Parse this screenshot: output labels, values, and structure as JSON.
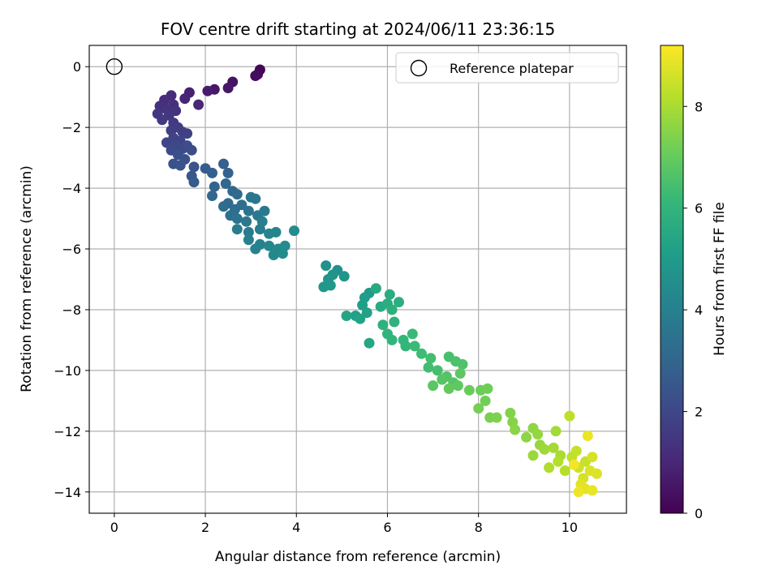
{
  "chart_data": {
    "type": "scatter",
    "title": "FOV centre drift starting at 2024/06/11 23:36:15",
    "xlabel": "Angular distance from reference (arcmin)",
    "ylabel": "Rotation from reference (arcmin)",
    "xlim": [
      -0.55,
      11.25
    ],
    "ylim": [
      -14.7,
      0.7
    ],
    "xticks": [
      0,
      2,
      4,
      6,
      8,
      10
    ],
    "yticks": [
      0,
      -2,
      -4,
      -6,
      -8,
      -10,
      -12,
      -14
    ],
    "grid": true,
    "legend": {
      "position": "top-right",
      "label": "Reference platepar"
    },
    "reference_point": {
      "x": 0,
      "y": 0
    },
    "colorbar": {
      "label": "Hours from first FF file",
      "min": 0,
      "max": 9.2,
      "ticks": [
        0,
        2,
        4,
        6,
        8
      ],
      "colormap": [
        "#440154",
        "#482878",
        "#3e4989",
        "#31688e",
        "#26828e",
        "#1f9e89",
        "#35b779",
        "#6ece58",
        "#b5de2b",
        "#fde725"
      ]
    },
    "series": [
      {
        "points": [
          [
            3.2,
            -0.1,
            0.1
          ],
          [
            3.15,
            -0.25,
            0.2
          ],
          [
            3.1,
            -0.3,
            0.3
          ],
          [
            2.6,
            -0.5,
            0.45
          ],
          [
            2.5,
            -0.7,
            0.55
          ],
          [
            2.2,
            -0.75,
            0.6
          ],
          [
            2.05,
            -0.8,
            0.7
          ],
          [
            1.65,
            -0.85,
            0.85
          ],
          [
            1.55,
            -1.05,
            0.95
          ],
          [
            1.85,
            -1.25,
            1.0
          ],
          [
            1.25,
            -0.95,
            1.15
          ],
          [
            1.1,
            -1.1,
            1.2
          ],
          [
            1.3,
            -1.25,
            1.25
          ],
          [
            1.0,
            -1.3,
            1.3
          ],
          [
            1.15,
            -1.4,
            1.35
          ],
          [
            1.35,
            -1.45,
            1.4
          ],
          [
            0.95,
            -1.55,
            1.45
          ],
          [
            1.2,
            -1.6,
            1.5
          ],
          [
            1.05,
            -1.75,
            1.55
          ],
          [
            1.3,
            -1.85,
            1.6
          ],
          [
            1.4,
            -2.0,
            1.65
          ],
          [
            1.25,
            -2.1,
            1.7
          ],
          [
            1.5,
            -2.15,
            1.75
          ],
          [
            1.6,
            -2.2,
            1.8
          ],
          [
            1.3,
            -2.35,
            1.85
          ],
          [
            1.45,
            -2.45,
            1.9
          ],
          [
            1.15,
            -2.5,
            1.95
          ],
          [
            1.35,
            -2.6,
            2.0
          ],
          [
            1.5,
            -2.7,
            2.05
          ],
          [
            1.25,
            -2.75,
            2.1
          ],
          [
            1.6,
            -2.6,
            2.15
          ],
          [
            1.7,
            -2.75,
            2.2
          ],
          [
            1.4,
            -2.9,
            2.25
          ],
          [
            1.55,
            -3.05,
            2.3
          ],
          [
            1.3,
            -3.2,
            2.35
          ],
          [
            1.45,
            -3.25,
            2.4
          ],
          [
            1.75,
            -3.3,
            2.45
          ],
          [
            1.7,
            -3.6,
            2.55
          ],
          [
            1.75,
            -3.8,
            2.6
          ],
          [
            2.0,
            -3.35,
            2.7
          ],
          [
            2.15,
            -3.5,
            2.8
          ],
          [
            2.4,
            -3.2,
            2.85
          ],
          [
            2.5,
            -3.5,
            2.9
          ],
          [
            2.2,
            -3.95,
            2.95
          ],
          [
            2.15,
            -4.25,
            3.0
          ],
          [
            2.45,
            -3.85,
            3.05
          ],
          [
            2.6,
            -4.1,
            3.1
          ],
          [
            2.7,
            -4.2,
            3.15
          ],
          [
            2.5,
            -4.5,
            3.2
          ],
          [
            2.4,
            -4.6,
            3.25
          ],
          [
            2.65,
            -4.7,
            3.3
          ],
          [
            2.8,
            -4.55,
            3.35
          ],
          [
            2.55,
            -4.9,
            3.4
          ],
          [
            2.7,
            -5.0,
            3.45
          ],
          [
            2.95,
            -4.75,
            3.5
          ],
          [
            3.0,
            -4.3,
            3.55
          ],
          [
            3.1,
            -4.35,
            3.6
          ],
          [
            2.9,
            -5.1,
            3.65
          ],
          [
            3.15,
            -4.9,
            3.7
          ],
          [
            3.3,
            -4.75,
            3.75
          ],
          [
            2.7,
            -5.35,
            3.8
          ],
          [
            2.95,
            -5.45,
            3.85
          ],
          [
            3.2,
            -5.35,
            3.9
          ],
          [
            3.25,
            -5.1,
            3.95
          ],
          [
            2.95,
            -5.7,
            4.0
          ],
          [
            3.2,
            -5.85,
            4.05
          ],
          [
            3.1,
            -6.0,
            4.1
          ],
          [
            3.4,
            -5.5,
            4.15
          ],
          [
            3.55,
            -5.45,
            4.2
          ],
          [
            3.4,
            -5.9,
            4.25
          ],
          [
            3.6,
            -6.0,
            4.3
          ],
          [
            3.5,
            -6.2,
            4.35
          ],
          [
            3.7,
            -6.15,
            4.4
          ],
          [
            3.75,
            -5.9,
            4.45
          ],
          [
            3.95,
            -5.4,
            4.5
          ],
          [
            4.65,
            -6.55,
            4.6
          ],
          [
            4.9,
            -6.7,
            4.65
          ],
          [
            4.8,
            -6.85,
            4.7
          ],
          [
            5.05,
            -6.9,
            4.75
          ],
          [
            4.7,
            -7.0,
            4.8
          ],
          [
            4.6,
            -7.25,
            4.85
          ],
          [
            4.75,
            -7.2,
            4.9
          ],
          [
            5.6,
            -7.45,
            5.05
          ],
          [
            5.5,
            -7.6,
            5.1
          ],
          [
            5.45,
            -7.85,
            5.15
          ],
          [
            5.3,
            -8.2,
            5.2
          ],
          [
            5.55,
            -8.1,
            5.25
          ],
          [
            5.4,
            -8.3,
            5.3
          ],
          [
            5.1,
            -8.2,
            5.35
          ],
          [
            5.6,
            -9.1,
            5.45
          ],
          [
            5.75,
            -7.3,
            5.55
          ],
          [
            5.85,
            -7.9,
            5.6
          ],
          [
            6.05,
            -7.5,
            5.65
          ],
          [
            6.0,
            -7.8,
            5.7
          ],
          [
            6.25,
            -7.75,
            5.75
          ],
          [
            6.1,
            -8.0,
            5.8
          ],
          [
            5.9,
            -8.5,
            5.85
          ],
          [
            6.15,
            -8.4,
            5.9
          ],
          [
            6.0,
            -8.8,
            5.95
          ],
          [
            6.1,
            -9.0,
            6.0
          ],
          [
            6.4,
            -9.2,
            6.05
          ],
          [
            6.35,
            -9.0,
            6.1
          ],
          [
            6.55,
            -8.8,
            6.2
          ],
          [
            6.6,
            -9.2,
            6.25
          ],
          [
            6.75,
            -9.45,
            6.3
          ],
          [
            6.9,
            -9.9,
            6.35
          ],
          [
            6.95,
            -9.6,
            6.4
          ],
          [
            7.1,
            -10.0,
            6.45
          ],
          [
            7.35,
            -9.55,
            6.5
          ],
          [
            7.5,
            -9.7,
            6.55
          ],
          [
            7.65,
            -9.8,
            6.6
          ],
          [
            7.3,
            -10.2,
            6.65
          ],
          [
            7.45,
            -10.4,
            6.7
          ],
          [
            7.2,
            -10.3,
            6.75
          ],
          [
            7.0,
            -10.5,
            6.8
          ],
          [
            7.6,
            -10.1,
            6.85
          ],
          [
            7.55,
            -10.5,
            6.9
          ],
          [
            7.35,
            -10.6,
            6.95
          ],
          [
            7.8,
            -10.65,
            7.05
          ],
          [
            8.05,
            -10.65,
            7.1
          ],
          [
            8.2,
            -10.6,
            7.15
          ],
          [
            8.15,
            -11.0,
            7.2
          ],
          [
            8.0,
            -11.25,
            7.25
          ],
          [
            8.25,
            -11.55,
            7.3
          ],
          [
            8.4,
            -11.55,
            7.35
          ],
          [
            8.7,
            -11.4,
            7.45
          ],
          [
            8.75,
            -11.7,
            7.5
          ],
          [
            8.8,
            -11.95,
            7.55
          ],
          [
            9.05,
            -12.2,
            7.6
          ],
          [
            9.2,
            -11.9,
            7.65
          ],
          [
            9.3,
            -12.1,
            7.7
          ],
          [
            9.35,
            -12.45,
            7.75
          ],
          [
            9.2,
            -12.8,
            7.8
          ],
          [
            9.45,
            -12.6,
            7.85
          ],
          [
            9.7,
            -12.0,
            7.9
          ],
          [
            9.65,
            -12.55,
            7.95
          ],
          [
            9.8,
            -12.8,
            8.0
          ],
          [
            9.55,
            -13.2,
            8.1
          ],
          [
            9.75,
            -13.0,
            8.15
          ],
          [
            9.9,
            -13.3,
            8.2
          ],
          [
            10.0,
            -11.5,
            8.3
          ],
          [
            10.05,
            -12.85,
            8.35
          ],
          [
            10.15,
            -12.65,
            8.4
          ],
          [
            10.35,
            -13.0,
            8.45
          ],
          [
            10.2,
            -13.2,
            8.5
          ],
          [
            10.3,
            -13.55,
            8.6
          ],
          [
            10.5,
            -12.85,
            8.65
          ],
          [
            10.45,
            -13.3,
            8.7
          ],
          [
            10.6,
            -13.4,
            8.75
          ],
          [
            10.25,
            -13.75,
            8.8
          ],
          [
            10.35,
            -13.9,
            8.85
          ],
          [
            10.5,
            -13.95,
            8.9
          ],
          [
            10.4,
            -12.15,
            8.95
          ],
          [
            10.2,
            -14.0,
            9.0
          ],
          [
            10.1,
            -13.1,
            9.05
          ]
        ]
      }
    ]
  }
}
